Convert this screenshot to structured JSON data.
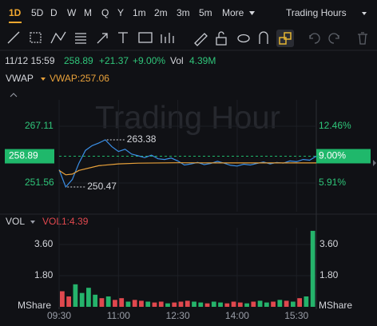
{
  "toolbar": {
    "periods": [
      "1D",
      "5D",
      "D",
      "W",
      "M",
      "Q",
      "Y",
      "1m",
      "2m",
      "3m",
      "5m"
    ],
    "more": "More",
    "session": "Trading Hours"
  },
  "quote": {
    "time": "11/12 15:59",
    "price": "258.89",
    "change": "+21.37",
    "percent": "+9.00%",
    "vol_label": "Vol",
    "vol": "4.39M"
  },
  "chart_data": [
    {
      "type": "line",
      "watermark": "Trading Hour",
      "legend_value": "VWAP:257.06",
      "xlim": [
        0,
        390
      ],
      "xticks": [
        {
          "value": 0,
          "label": "09:30"
        },
        {
          "value": 90,
          "label": "11:00"
        },
        {
          "value": 180,
          "label": "12:30"
        },
        {
          "value": 270,
          "label": "14:00"
        },
        {
          "value": 360,
          "label": "15:30"
        }
      ],
      "ylim": [
        243.68,
        274.34
      ],
      "yticks": [
        251.56,
        258.89,
        267.11
      ],
      "y2lim": [
        2.59,
        15.5
      ],
      "y2ticks": [
        {
          "value": 5.91,
          "label": "5.91%"
        },
        {
          "value": 9.0,
          "label": "9.00%"
        },
        {
          "value": 12.46,
          "label": "12.46%"
        }
      ],
      "series": [
        {
          "color": "#3b8fe6",
          "x": [
            0,
            10,
            20,
            30,
            40,
            50,
            60,
            70,
            80,
            90,
            100,
            110,
            120,
            130,
            140,
            150,
            160,
            170,
            180,
            190,
            200,
            210,
            220,
            230,
            240,
            250,
            260,
            270,
            280,
            290,
            300,
            310,
            320,
            330,
            340,
            350,
            360,
            370,
            380,
            390
          ],
          "values": [
            255.2,
            250.47,
            252.5,
            257.0,
            260.5,
            261.8,
            262.5,
            263.38,
            261.5,
            260.2,
            260.8,
            259.5,
            259.0,
            258.5,
            259.2,
            258.2,
            258.0,
            258.4,
            257.6,
            256.5,
            256.8,
            257.2,
            256.6,
            256.9,
            257.5,
            257.0,
            256.4,
            256.2,
            256.7,
            256.5,
            256.9,
            257.3,
            256.8,
            257.2,
            257.0,
            257.6,
            257.4,
            258.0,
            257.8,
            258.89
          ]
        },
        {
          "name": "VWAP",
          "color": "#e8a13a",
          "x": [
            0,
            10,
            20,
            30,
            60,
            90,
            120,
            180,
            240,
            300,
            390
          ],
          "values": [
            255.0,
            253.8,
            254.0,
            255.0,
            256.3,
            256.8,
            257.0,
            257.1,
            257.05,
            257.05,
            257.06
          ]
        }
      ],
      "annotations": [
        {
          "x": 70,
          "value": 263.38
        },
        {
          "x": 10,
          "value": 250.47
        }
      ]
    },
    {
      "type": "bar",
      "title": "VOL",
      "legend_value": "VOL1:4.39",
      "unit": "MShare",
      "xlim": [
        0,
        390
      ],
      "ylim": [
        0,
        4.57
      ],
      "yticks": [
        {
          "value": 1.8,
          "label": "1.80"
        },
        {
          "value": 3.6,
          "label": "3.60"
        }
      ],
      "x": [
        0,
        10,
        20,
        30,
        40,
        50,
        60,
        70,
        80,
        90,
        100,
        110,
        120,
        130,
        140,
        150,
        160,
        170,
        180,
        190,
        200,
        210,
        220,
        230,
        240,
        250,
        260,
        270,
        280,
        290,
        300,
        310,
        320,
        330,
        340,
        350,
        360,
        370,
        380
      ],
      "values": [
        0.9,
        0.6,
        1.3,
        0.8,
        1.1,
        0.7,
        0.5,
        0.6,
        0.4,
        0.5,
        0.3,
        0.4,
        0.35,
        0.3,
        0.25,
        0.3,
        0.2,
        0.25,
        0.3,
        0.35,
        0.3,
        0.25,
        0.2,
        0.3,
        0.25,
        0.2,
        0.3,
        0.25,
        0.2,
        0.3,
        0.35,
        0.25,
        0.3,
        0.4,
        0.35,
        0.3,
        0.5,
        0.6,
        4.39
      ],
      "colors": [
        "#e0484e",
        "#e0484e",
        "#25b36b",
        "#25b36b",
        "#25b36b",
        "#25b36b",
        "#e0484e",
        "#25b36b",
        "#e0484e",
        "#e0484e",
        "#25b36b",
        "#e0484e",
        "#e0484e",
        "#25b36b",
        "#e0484e",
        "#e0484e",
        "#25b36b",
        "#e0484e",
        "#e0484e",
        "#e0484e",
        "#25b36b",
        "#25b36b",
        "#e0484e",
        "#25b36b",
        "#25b36b",
        "#e0484e",
        "#e0484e",
        "#e0484e",
        "#25b36b",
        "#e0484e",
        "#25b36b",
        "#25b36b",
        "#e0484e",
        "#25b36b",
        "#e0484e",
        "#25b36b",
        "#e0484e",
        "#25b36b",
        "#25b36b"
      ]
    }
  ]
}
